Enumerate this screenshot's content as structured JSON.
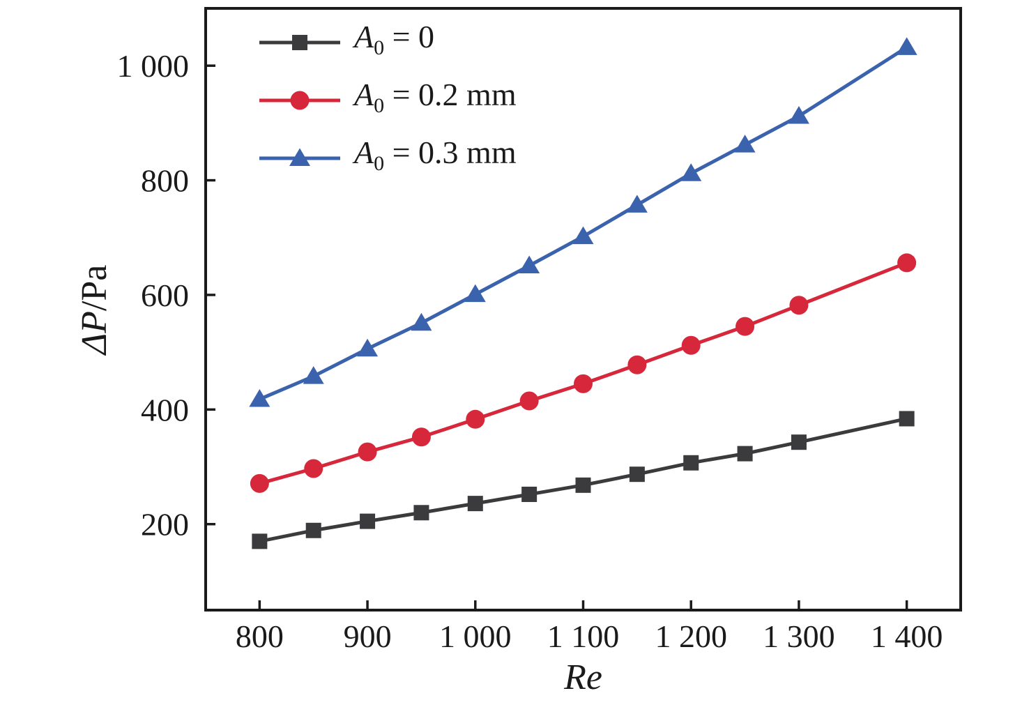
{
  "figure": {
    "background": "#ffffff",
    "text_color": "#1a1a1a",
    "axis_color": "#1a1a1a"
  },
  "chart_data": {
    "type": "line",
    "title": "",
    "xlabel": "Re",
    "ylabel": "ΔP/Pa",
    "ylabel_parts": [
      {
        "text": "ΔP",
        "italic": true
      },
      {
        "text": "/Pa",
        "italic": false
      }
    ],
    "xlim": [
      750,
      1450
    ],
    "ylim": [
      50,
      1100
    ],
    "x_ticks": [
      800,
      900,
      1000,
      1100,
      1200,
      1300,
      1400
    ],
    "x_tick_labels": [
      "800",
      "900",
      "1 000",
      "1 100",
      "1 200",
      "1 300",
      "1 400"
    ],
    "y_ticks": [
      200,
      400,
      600,
      800,
      1000
    ],
    "y_tick_labels": [
      "200",
      "400",
      "600",
      "800",
      "1 000"
    ],
    "grid": false,
    "legend_position": "upper-left",
    "x": [
      800,
      850,
      900,
      950,
      1000,
      1050,
      1100,
      1150,
      1200,
      1250,
      1300,
      1400
    ],
    "series": [
      {
        "name": "A₀ = 0",
        "marker": "square",
        "color": "#3b3b3e",
        "values": [
          170,
          189,
          205,
          220,
          236,
          252,
          268,
          287,
          307,
          323,
          343,
          384
        ]
      },
      {
        "name": "A₀ = 0.2 mm",
        "marker": "circle",
        "color": "#d7283b",
        "values": [
          271,
          297,
          326,
          352,
          383,
          415,
          445,
          478,
          512,
          545,
          582,
          656
        ]
      },
      {
        "name": "A₀ = 0.3 mm",
        "marker": "triangle",
        "color": "#3a62ad",
        "values": [
          418,
          458,
          506,
          551,
          601,
          651,
          702,
          757,
          812,
          862,
          912,
          1032
        ]
      }
    ]
  }
}
